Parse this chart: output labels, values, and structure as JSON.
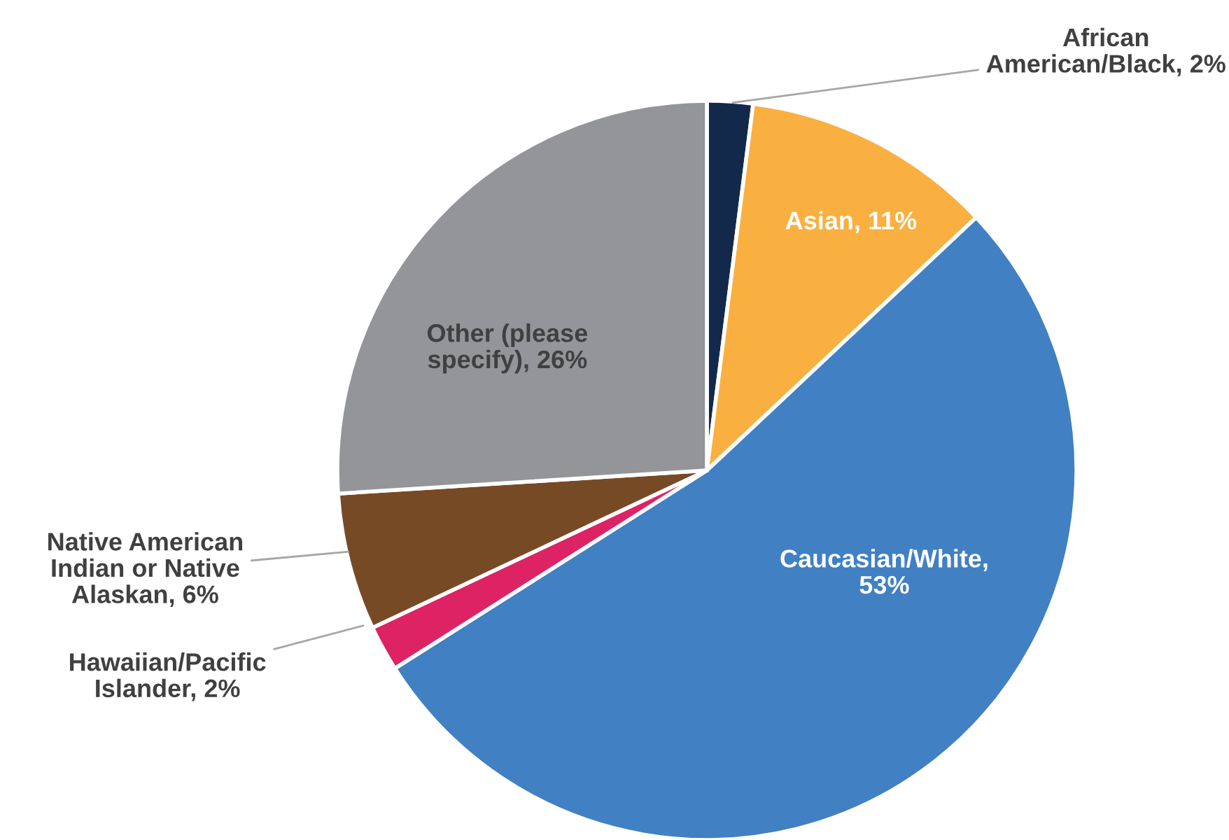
{
  "chart_data": {
    "type": "pie",
    "categories": [
      "African American/Black, 2%",
      "Asian, 11%",
      "Caucasian/White, 53%",
      "Hawaiian/Pacific Islander, 2%",
      "Native American Indian or Native Alaskan, 6%",
      "Other (please specify), 26%"
    ],
    "values": [
      2,
      11,
      53,
      2,
      6,
      26
    ],
    "colors": [
      "#13294b",
      "#f9b041",
      "#4180c3",
      "#dd2363",
      "#774a26",
      "#939598"
    ],
    "legend": false
  }
}
